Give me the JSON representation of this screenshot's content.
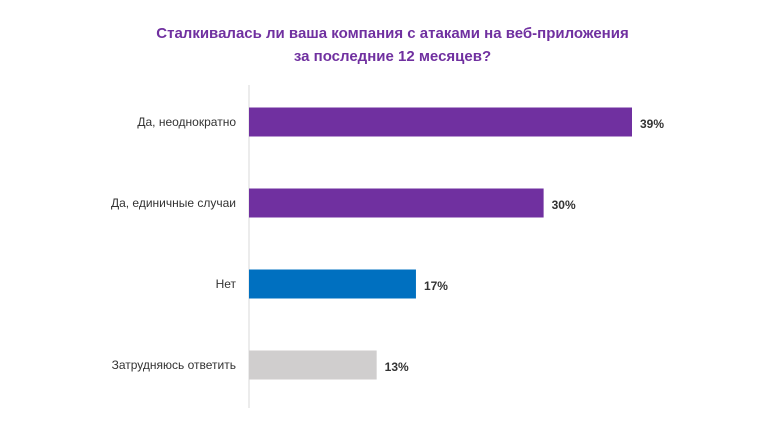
{
  "chart_data": {
    "type": "bar",
    "orientation": "horizontal",
    "title_lines": [
      "Сталкивалась ли ваша компания с атаками на веб-приложения",
      "за последние 12 месяцев?"
    ],
    "categories": [
      "Да, неоднократно",
      "Да, единичные случаи",
      "Нет",
      "Затрудняюсь ответить"
    ],
    "values": [
      39,
      30,
      17,
      13
    ],
    "value_labels": [
      "39%",
      "30%",
      "17%",
      "13%"
    ],
    "colors": [
      "#7030a0",
      "#7030a0",
      "#0070c0",
      "#d0cece"
    ],
    "xlim": [
      0,
      39
    ],
    "xlabel": "",
    "ylabel": "",
    "grid": false,
    "legend": "none"
  }
}
